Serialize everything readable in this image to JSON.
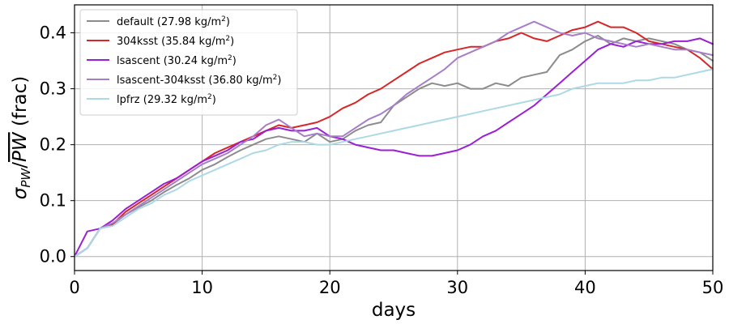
{
  "chart_data": {
    "type": "line",
    "xlabel": "days",
    "ylabel": "σPW/PW (frac)",
    "ylabel_parts": {
      "sigma": "σ",
      "sub": "PW",
      "over": "PW",
      "suffix": " (frac)"
    },
    "xlim": [
      0,
      50
    ],
    "ylim": [
      -0.025,
      0.45
    ],
    "xticks": [
      0,
      10,
      20,
      30,
      40,
      50
    ],
    "yticks": [
      0.0,
      0.1,
      0.2,
      0.3,
      0.4
    ],
    "xtick_labels": [
      "0",
      "10",
      "20",
      "30",
      "40",
      "50"
    ],
    "ytick_labels": [
      "0.0",
      "0.1",
      "0.2",
      "0.3",
      "0.4"
    ],
    "grid": true,
    "legend_position": "top-left",
    "series": [
      {
        "name": "default (27.98 kg/m2)",
        "label_main": "default (27.98 kg/m",
        "label_sup": "2",
        "label_tail": ")",
        "color": "#8c8c8c",
        "x": [
          0,
          1,
          2,
          3,
          4,
          5,
          6,
          7,
          8,
          9,
          10,
          11,
          12,
          13,
          14,
          15,
          16,
          17,
          18,
          19,
          20,
          21,
          22,
          23,
          24,
          25,
          26,
          27,
          28,
          29,
          30,
          31,
          32,
          33,
          34,
          35,
          36,
          37,
          38,
          39,
          40,
          41,
          42,
          43,
          44,
          45,
          46,
          47,
          48,
          49,
          50
        ],
        "y": [
          0.0,
          0.015,
          0.05,
          0.058,
          0.075,
          0.088,
          0.1,
          0.115,
          0.128,
          0.14,
          0.155,
          0.165,
          0.178,
          0.19,
          0.2,
          0.21,
          0.215,
          0.21,
          0.205,
          0.22,
          0.205,
          0.21,
          0.225,
          0.235,
          0.24,
          0.27,
          0.285,
          0.3,
          0.31,
          0.305,
          0.31,
          0.3,
          0.3,
          0.31,
          0.305,
          0.32,
          0.325,
          0.33,
          0.36,
          0.37,
          0.385,
          0.395,
          0.38,
          0.39,
          0.385,
          0.39,
          0.385,
          0.38,
          0.37,
          0.365,
          0.35
        ]
      },
      {
        "name": "304ksst (35.84 kg/m2)",
        "label_main": "304ksst (35.84 kg/m",
        "label_sup": "2",
        "label_tail": ")",
        "color": "#d62728",
        "x": [
          0,
          1,
          2,
          3,
          4,
          5,
          6,
          7,
          8,
          9,
          10,
          11,
          12,
          13,
          14,
          15,
          16,
          17,
          18,
          19,
          20,
          21,
          22,
          23,
          24,
          25,
          26,
          27,
          28,
          29,
          30,
          31,
          32,
          33,
          34,
          35,
          36,
          37,
          38,
          39,
          40,
          41,
          42,
          43,
          44,
          45,
          46,
          47,
          48,
          49,
          50
        ],
        "y": [
          0.0,
          0.015,
          0.05,
          0.058,
          0.08,
          0.095,
          0.11,
          0.125,
          0.14,
          0.155,
          0.17,
          0.185,
          0.195,
          0.205,
          0.215,
          0.225,
          0.235,
          0.23,
          0.235,
          0.24,
          0.25,
          0.265,
          0.275,
          0.29,
          0.3,
          0.315,
          0.33,
          0.345,
          0.355,
          0.365,
          0.37,
          0.375,
          0.375,
          0.385,
          0.39,
          0.4,
          0.39,
          0.385,
          0.395,
          0.405,
          0.41,
          0.42,
          0.41,
          0.41,
          0.4,
          0.385,
          0.38,
          0.375,
          0.37,
          0.355,
          0.335
        ]
      },
      {
        "name": "lsascent (30.24 kg/m2)",
        "label_main": "lsascent (30.24 kg/m",
        "label_sup": "2",
        "label_tail": ")",
        "color": "#9b1fd4",
        "x": [
          0,
          1,
          2,
          3,
          4,
          5,
          6,
          7,
          8,
          9,
          10,
          11,
          12,
          13,
          14,
          15,
          16,
          17,
          18,
          19,
          20,
          21,
          22,
          23,
          24,
          25,
          26,
          27,
          28,
          29,
          30,
          31,
          32,
          33,
          34,
          35,
          36,
          37,
          38,
          39,
          40,
          41,
          42,
          43,
          44,
          45,
          46,
          47,
          48,
          49,
          50
        ],
        "y": [
          0.0,
          0.045,
          0.05,
          0.065,
          0.085,
          0.1,
          0.115,
          0.13,
          0.14,
          0.155,
          0.17,
          0.18,
          0.19,
          0.205,
          0.21,
          0.225,
          0.23,
          0.225,
          0.225,
          0.23,
          0.215,
          0.21,
          0.2,
          0.195,
          0.19,
          0.19,
          0.185,
          0.18,
          0.18,
          0.185,
          0.19,
          0.2,
          0.215,
          0.225,
          0.24,
          0.255,
          0.27,
          0.29,
          0.31,
          0.33,
          0.35,
          0.37,
          0.38,
          0.375,
          0.385,
          0.38,
          0.38,
          0.385,
          0.385,
          0.39,
          0.38
        ]
      },
      {
        "name": "lsascent-304ksst (36.80 kg/m2)",
        "label_main": "lsascent-304ksst (36.80 kg/m",
        "label_sup": "2",
        "label_tail": ")",
        "color": "#a67dc9",
        "x": [
          0,
          1,
          2,
          3,
          4,
          5,
          6,
          7,
          8,
          9,
          10,
          11,
          12,
          13,
          14,
          15,
          16,
          17,
          18,
          19,
          20,
          21,
          22,
          23,
          24,
          25,
          26,
          27,
          28,
          29,
          30,
          31,
          32,
          33,
          34,
          35,
          36,
          37,
          38,
          39,
          40,
          41,
          42,
          43,
          44,
          45,
          46,
          47,
          48,
          49,
          50
        ],
        "y": [
          0.0,
          0.015,
          0.05,
          0.06,
          0.075,
          0.09,
          0.105,
          0.12,
          0.135,
          0.15,
          0.165,
          0.175,
          0.185,
          0.2,
          0.215,
          0.235,
          0.245,
          0.23,
          0.215,
          0.22,
          0.215,
          0.215,
          0.23,
          0.245,
          0.255,
          0.27,
          0.29,
          0.305,
          0.32,
          0.335,
          0.355,
          0.365,
          0.375,
          0.385,
          0.4,
          0.41,
          0.42,
          0.41,
          0.4,
          0.395,
          0.4,
          0.39,
          0.385,
          0.38,
          0.375,
          0.38,
          0.375,
          0.37,
          0.37,
          0.365,
          0.36
        ]
      },
      {
        "name": "lpfrz (29.32 kg/m2)",
        "label_main": "lpfrz (29.32 kg/m",
        "label_sup": "2",
        "label_tail": ")",
        "color": "#add8e6",
        "x": [
          0,
          1,
          2,
          3,
          4,
          5,
          6,
          7,
          8,
          9,
          10,
          11,
          12,
          13,
          14,
          15,
          16,
          17,
          18,
          19,
          20,
          21,
          22,
          23,
          24,
          25,
          26,
          27,
          28,
          29,
          30,
          31,
          32,
          33,
          34,
          35,
          36,
          37,
          38,
          39,
          40,
          41,
          42,
          43,
          44,
          45,
          46,
          47,
          48,
          49,
          50
        ],
        "y": [
          0.0,
          0.015,
          0.05,
          0.055,
          0.07,
          0.085,
          0.095,
          0.11,
          0.12,
          0.135,
          0.145,
          0.155,
          0.165,
          0.175,
          0.185,
          0.19,
          0.2,
          0.205,
          0.205,
          0.2,
          0.2,
          0.205,
          0.21,
          0.215,
          0.22,
          0.225,
          0.23,
          0.235,
          0.24,
          0.245,
          0.25,
          0.255,
          0.26,
          0.265,
          0.27,
          0.275,
          0.28,
          0.285,
          0.29,
          0.3,
          0.305,
          0.31,
          0.31,
          0.31,
          0.315,
          0.315,
          0.32,
          0.32,
          0.325,
          0.33,
          0.335
        ]
      }
    ]
  }
}
